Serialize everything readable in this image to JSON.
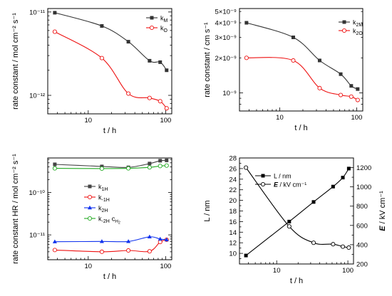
{
  "chart_data": [
    {
      "type": "line",
      "xscale": "log",
      "yscale": "log",
      "xlim": [
        3,
        120
      ],
      "ylim": [
        6e-13,
        1.1e-11
      ],
      "xlabel": "t / h",
      "ylabel": "rate constant / mol cm⁻² s⁻¹",
      "x_ticklabels": [
        {
          "v": 10,
          "t": "10"
        },
        {
          "v": 100,
          "t": "100"
        }
      ],
      "y_ticklabels": [
        {
          "v": 1e-12,
          "t": "10⁻¹²"
        },
        {
          "v": 1e-11,
          "t": "10⁻¹¹"
        }
      ],
      "legend_position": "top-right",
      "series": [
        {
          "name": "k_M",
          "label_main": "k",
          "label_sub": "M",
          "color": "#333333",
          "marker": "square-filled",
          "x": [
            3.7,
            15,
            33,
            62,
            85,
            103
          ],
          "y": [
            9.8e-12,
            6.8e-12,
            4.4e-12,
            2.6e-12,
            2.5e-12,
            2e-12
          ]
        },
        {
          "name": "k_O",
          "label_main": "k",
          "label_sub": "O",
          "color": "#ee1111",
          "marker": "circle-open",
          "x": [
            3.7,
            15,
            33,
            62,
            85,
            103
          ],
          "y": [
            5.8e-12,
            2.8e-12,
            1.05e-12,
            9.3e-13,
            8.5e-13,
            7e-13
          ]
        }
      ]
    },
    {
      "type": "line",
      "xscale": "log",
      "yscale": "log",
      "xlim": [
        3,
        120
      ],
      "ylim": [
        7e-10,
        5.3e-09
      ],
      "xlabel": "t / h",
      "ylabel": "rate constant / cm s⁻¹",
      "x_ticklabels": [
        {
          "v": 10,
          "t": "10"
        },
        {
          "v": 100,
          "t": "100"
        }
      ],
      "y_ticklabels": [
        {
          "v": 1e-09,
          "t": "10⁻⁹"
        },
        {
          "v": 2e-09,
          "t": "2×10⁻⁹"
        },
        {
          "v": 3e-09,
          "t": "3×10⁻⁹"
        },
        {
          "v": 4e-09,
          "t": "4×10⁻⁹"
        },
        {
          "v": 5e-09,
          "t": "5×10⁻⁹"
        }
      ],
      "legend_position": "top-right",
      "series": [
        {
          "name": "k_2M",
          "label_main": "k",
          "label_sub": "2M",
          "color": "#333333",
          "marker": "square-filled",
          "x": [
            3.7,
            15,
            33,
            62,
            85,
            103
          ],
          "y": [
            4e-09,
            3e-09,
            1.9e-09,
            1.45e-09,
            1.15e-09,
            1.08e-09
          ]
        },
        {
          "name": "k_2O",
          "label_main": "k",
          "label_sub": "2O",
          "color": "#ee1111",
          "marker": "circle-open",
          "x": [
            3.7,
            15,
            33,
            62,
            85,
            103
          ],
          "y": [
            2e-09,
            1.9e-09,
            1.1e-09,
            9.6e-10,
            9.3e-10,
            8.7e-10
          ]
        }
      ]
    },
    {
      "type": "line",
      "xscale": "log",
      "yscale": "log",
      "xlim": [
        3,
        120
      ],
      "ylim": [
        2.6e-12,
        6.5e-10
      ],
      "xlabel": "t / h",
      "ylabel": "rate constant HR / mol cm⁻² s⁻¹",
      "x_ticklabels": [
        {
          "v": 10,
          "t": "10"
        },
        {
          "v": 100,
          "t": "100"
        }
      ],
      "y_ticklabels": [
        {
          "v": 1e-11,
          "t": "10⁻¹¹"
        },
        {
          "v": 1e-10,
          "t": "10⁻¹⁰"
        }
      ],
      "legend_position": "center-left",
      "series": [
        {
          "name": "k_1H",
          "label_main": "k",
          "label_sub": "1H",
          "label_extra": "",
          "color": "#444444",
          "marker": "square-filled",
          "x": [
            3.7,
            15,
            33,
            62,
            85,
            103
          ],
          "y": [
            4.6e-10,
            4.1e-10,
            3.9e-10,
            4.8e-10,
            5.6e-10,
            5.7e-10
          ]
        },
        {
          "name": "k_-1H",
          "label_main": "k",
          "label_sub": "-1H",
          "label_extra": "",
          "color": "#ee1111",
          "marker": "circle-open",
          "x": [
            3.7,
            15,
            33,
            62,
            85,
            103
          ],
          "y": [
            4.4e-12,
            4e-12,
            4.3e-12,
            4.1e-12,
            6.8e-12,
            7.7e-12
          ]
        },
        {
          "name": "k_2H",
          "label_main": "k",
          "label_sub": "2H",
          "label_extra": "",
          "color": "#1133ee",
          "marker": "triangle-filled",
          "x": [
            3.7,
            15,
            33,
            62,
            85,
            103
          ],
          "y": [
            6.9e-12,
            7e-12,
            7e-12,
            9e-12,
            8e-12,
            7.7e-12
          ]
        },
        {
          "name": "k_-2H c_H2",
          "label_main": "k",
          "label_sub": "-2H",
          "label_extra": "c",
          "label_extra_sub": "H",
          "label_extra_subsub": "2",
          "color": "#22aa22",
          "marker": "circle-open",
          "x": [
            3.7,
            15,
            33,
            62,
            85,
            103
          ],
          "y": [
            3.7e-10,
            3.65e-10,
            3.7e-10,
            3.9e-10,
            4.2e-10,
            4.3e-10
          ]
        }
      ]
    },
    {
      "type": "line",
      "xscale": "log",
      "yscale": "linear",
      "xlim": [
        3,
        120
      ],
      "ylim": [
        8,
        28
      ],
      "y2lim": [
        200,
        1300
      ],
      "xlabel": "t / h",
      "ylabel": "L / nm",
      "y2label_main": "E",
      "y2label_rest": " / kV cm⁻¹",
      "x_ticklabels": [
        {
          "v": 10,
          "t": "10"
        },
        {
          "v": 100,
          "t": "100"
        }
      ],
      "y_ticklabels": [
        {
          "v": 10,
          "t": "10"
        },
        {
          "v": 12,
          "t": "12"
        },
        {
          "v": 14,
          "t": "14"
        },
        {
          "v": 16,
          "t": "16"
        },
        {
          "v": 18,
          "t": "18"
        },
        {
          "v": 20,
          "t": "20"
        },
        {
          "v": 22,
          "t": "22"
        },
        {
          "v": 24,
          "t": "24"
        },
        {
          "v": 26,
          "t": "26"
        },
        {
          "v": 28,
          "t": "28"
        }
      ],
      "y2_ticklabels": [
        {
          "v": 200,
          "t": "200"
        },
        {
          "v": 400,
          "t": "400"
        },
        {
          "v": 600,
          "t": "600"
        },
        {
          "v": 800,
          "t": "800"
        },
        {
          "v": 1000,
          "t": "1000"
        },
        {
          "v": 1200,
          "t": "1200"
        }
      ],
      "legend_position": "top-center",
      "series": [
        {
          "name": "L / nm",
          "label_main": "L / nm",
          "color": "#000000",
          "marker": "square-filled",
          "axis": "left",
          "x": [
            3.7,
            15,
            33,
            62,
            85,
            103
          ],
          "y": [
            9.6,
            16.0,
            19.7,
            22.6,
            24.3,
            26.0
          ]
        },
        {
          "name": "E / kV cm⁻¹",
          "label_main": "E",
          "label_rest": " / kV cm⁻¹",
          "label_italic": true,
          "color": "#000000",
          "marker": "circle-open",
          "axis": "right",
          "x": [
            3.7,
            15,
            33,
            62,
            85,
            103
          ],
          "y": [
            1200,
            590,
            420,
            405,
            380,
            370
          ]
        }
      ]
    }
  ]
}
